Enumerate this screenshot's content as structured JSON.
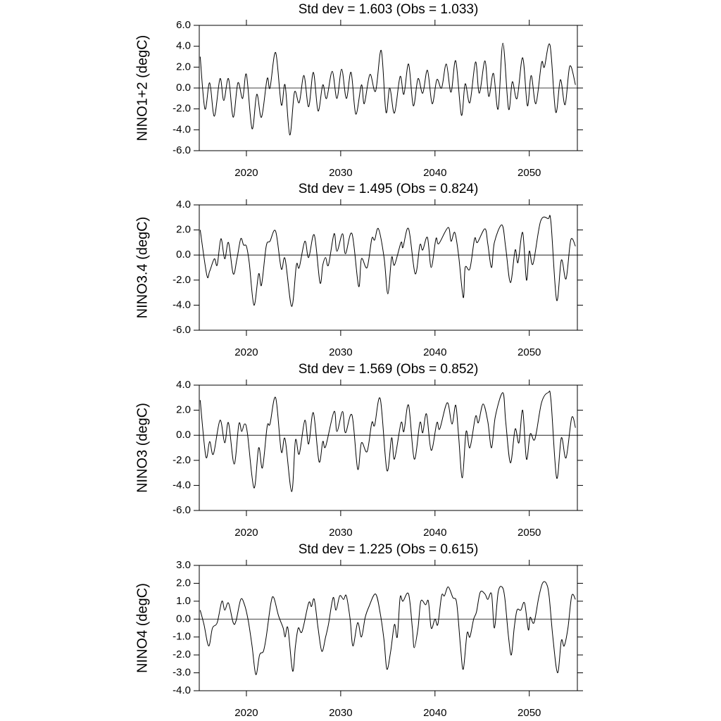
{
  "chart_data": [
    {
      "type": "line",
      "title": "Std dev = 1.603 (Obs = 1.033)",
      "y_label": "NINO1+2 (degC)",
      "color": "#000000",
      "zero_line": 0,
      "xlim": [
        2015,
        2055.1
      ],
      "xticks": [
        2020,
        2030,
        2040,
        2050
      ],
      "ylim": [
        -6,
        6
      ],
      "yticks": [
        {
          "value": 6,
          "label": "6.0"
        },
        {
          "value": 4,
          "label": "4.0"
        },
        {
          "value": 2,
          "label": "2.0"
        },
        {
          "value": 0,
          "label": "0.0"
        },
        {
          "value": -2,
          "label": "-2.0"
        },
        {
          "value": -4,
          "label": "-4.0"
        },
        {
          "value": -6,
          "label": "-6.0"
        }
      ],
      "x": [
        2015.1,
        2015.6,
        2016.1,
        2016.6,
        2017.2,
        2017.6,
        2018.1,
        2018.6,
        2019.1,
        2019.6,
        2020.0,
        2020.6,
        2021.1,
        2021.6,
        2022.2,
        2022.5,
        2023.1,
        2023.7,
        2024.1,
        2024.6,
        2025.1,
        2025.6,
        2026.1,
        2026.6,
        2027.1,
        2027.6,
        2028.1,
        2028.5,
        2029.1,
        2029.6,
        2030.1,
        2030.6,
        2031.1,
        2031.6,
        2032.2,
        2032.5,
        2033.1,
        2033.7,
        2034.3,
        2034.8,
        2035.2,
        2035.7,
        2036.3,
        2036.7,
        2037.2,
        2037.7,
        2038.2,
        2038.7,
        2039.2,
        2039.7,
        2040.2,
        2040.7,
        2041.2,
        2041.7,
        2042.2,
        2042.8,
        2043.2,
        2043.7,
        2044.3,
        2044.7,
        2045.3,
        2045.7,
        2046.2,
        2046.7,
        2047.2,
        2047.8,
        2048.2,
        2048.7,
        2049.3,
        2049.8,
        2050.2,
        2050.7,
        2051.3,
        2051.6,
        2052.2,
        2052.8,
        2053.3,
        2053.8,
        2054.3,
        2054.9
      ],
      "values": [
        3.0,
        -2.0,
        0.5,
        -2.7,
        0.9,
        -1.2,
        0.9,
        -2.8,
        0.5,
        -1.0,
        1.3,
        -3.9,
        -0.6,
        -2.8,
        0.9,
        0.0,
        3.4,
        -1.6,
        0.3,
        -4.5,
        -0.4,
        -1.4,
        1.2,
        -1.8,
        1.5,
        -2.2,
        0.3,
        -1.0,
        1.6,
        -1.0,
        1.8,
        -1.0,
        1.5,
        -2.5,
        0.3,
        -1.5,
        1.3,
        -0.3,
        3.6,
        -2.3,
        0.0,
        -2.4,
        1.1,
        -0.6,
        2.3,
        -1.7,
        0.9,
        -0.5,
        1.7,
        -1.5,
        0.8,
        0.0,
        2.3,
        -0.4,
        2.6,
        -2.6,
        0.4,
        -1.4,
        2.5,
        -0.5,
        2.6,
        -0.8,
        1.4,
        -2.0,
        4.3,
        -2.0,
        0.6,
        -1.0,
        2.9,
        -1.7,
        1.2,
        -1.5,
        2.4,
        2.0,
        4.1,
        -2.3,
        0.8,
        -1.6,
        2.1,
        0.3
      ]
    },
    {
      "type": "line",
      "title": "Std dev = 1.495 (Obs = 0.824)",
      "y_label": "NINO3.4 (degC)",
      "color": "#000000",
      "zero_line": 0,
      "xlim": [
        2015,
        2055.1
      ],
      "xticks": [
        2020,
        2030,
        2040,
        2050
      ],
      "ylim": [
        -6,
        4
      ],
      "yticks": [
        {
          "value": 4,
          "label": "4.0"
        },
        {
          "value": 2,
          "label": "2.0"
        },
        {
          "value": 0,
          "label": "0.0"
        },
        {
          "value": -2,
          "label": "-2.0"
        },
        {
          "value": -4,
          "label": "-4.0"
        },
        {
          "value": -6,
          "label": "-6.0"
        }
      ],
      "x": [
        2015.1,
        2015.8,
        2016.1,
        2016.6,
        2016.9,
        2017.3,
        2017.7,
        2018.1,
        2018.6,
        2019.0,
        2019.4,
        2019.7,
        2020.0,
        2020.3,
        2020.8,
        2021.3,
        2021.6,
        2022.1,
        2022.5,
        2023.1,
        2023.7,
        2024.1,
        2024.8,
        2025.3,
        2025.6,
        2026.2,
        2026.6,
        2027.2,
        2027.8,
        2028.1,
        2028.4,
        2028.7,
        2029.3,
        2029.6,
        2030.2,
        2030.5,
        2031.2,
        2031.9,
        2032.2,
        2032.8,
        2033.3,
        2033.6,
        2034.0,
        2034.6,
        2035.0,
        2035.4,
        2035.7,
        2036.4,
        2036.6,
        2037.2,
        2037.9,
        2038.4,
        2038.7,
        2039.2,
        2039.6,
        2040.1,
        2040.4,
        2041.4,
        2041.7,
        2042.1,
        2042.5,
        2043.0,
        2043.2,
        2043.7,
        2044.2,
        2044.5,
        2045.3,
        2045.6,
        2046.0,
        2046.3,
        2047.1,
        2047.5,
        2048.0,
        2048.5,
        2048.8,
        2049.3,
        2049.7,
        2050.0,
        2050.4,
        2051.2,
        2052.0,
        2052.3,
        2052.9,
        2053.4,
        2053.9,
        2054.4,
        2054.9
      ],
      "values": [
        2.0,
        -1.6,
        -1.3,
        -0.3,
        -0.8,
        1.3,
        -0.3,
        1.0,
        -1.5,
        -0.3,
        1.3,
        0.8,
        0.7,
        -0.6,
        -4.0,
        -1.5,
        -2.4,
        0.7,
        1.1,
        1.9,
        -1.1,
        -0.3,
        -4.1,
        -0.8,
        -1.0,
        1.1,
        -0.2,
        1.6,
        -2.2,
        -0.8,
        -0.2,
        -0.8,
        1.7,
        0.3,
        1.7,
        0.1,
        1.7,
        -2.5,
        -0.3,
        -1.0,
        1.3,
        1.2,
        2.1,
        -0.2,
        -3.1,
        -0.2,
        -0.8,
        1.0,
        0.6,
        2.1,
        -1.5,
        0.8,
        0.4,
        1.4,
        -1.0,
        1.3,
        0.9,
        2.2,
        1.1,
        1.8,
        0.0,
        -3.4,
        -1.0,
        -1.1,
        1.3,
        1.0,
        2.1,
        0.9,
        -1.0,
        1.0,
        2.4,
        0.6,
        -2.2,
        0.4,
        -0.6,
        1.8,
        -2.0,
        0.3,
        -0.7,
        2.7,
        2.9,
        2.6,
        -3.6,
        -0.4,
        -1.9,
        1.2,
        0.7
      ]
    },
    {
      "type": "line",
      "title": "Std dev = 1.569 (Obs = 0.852)",
      "y_label": "NINO3 (degC)",
      "color": "#000000",
      "zero_line": 0,
      "xlim": [
        2015,
        2055.1
      ],
      "xticks": [
        2020,
        2030,
        2040,
        2050
      ],
      "ylim": [
        -6,
        4
      ],
      "yticks": [
        {
          "value": 4,
          "label": "4.0"
        },
        {
          "value": 2,
          "label": "2.0"
        },
        {
          "value": 0,
          "label": "0.0"
        },
        {
          "value": -2,
          "label": "-2.0"
        },
        {
          "value": -4,
          "label": "-4.0"
        },
        {
          "value": -6,
          "label": "-6.0"
        }
      ],
      "x": [
        2015.1,
        2015.7,
        2016.1,
        2016.5,
        2017.2,
        2017.7,
        2018.1,
        2018.7,
        2019.2,
        2019.5,
        2019.8,
        2020.1,
        2020.8,
        2021.3,
        2021.7,
        2022.2,
        2022.5,
        2023.1,
        2023.7,
        2024.1,
        2024.8,
        2025.2,
        2025.6,
        2026.2,
        2026.6,
        2027.1,
        2027.7,
        2028.1,
        2028.4,
        2029.3,
        2029.6,
        2030.2,
        2030.5,
        2031.2,
        2031.8,
        2032.2,
        2032.8,
        2033.3,
        2033.6,
        2034.2,
        2034.9,
        2035.4,
        2035.7,
        2036.4,
        2036.7,
        2037.2,
        2037.8,
        2038.4,
        2038.7,
        2039.1,
        2039.6,
        2040.2,
        2040.5,
        2041.3,
        2041.8,
        2042.2,
        2042.5,
        2042.9,
        2043.3,
        2043.7,
        2044.3,
        2044.6,
        2045.1,
        2045.6,
        2046.0,
        2046.4,
        2047.2,
        2047.5,
        2048.0,
        2048.5,
        2048.9,
        2049.3,
        2049.7,
        2050.1,
        2050.6,
        2051.3,
        2052.0,
        2052.3,
        2052.9,
        2053.4,
        2053.9,
        2054.5,
        2054.9
      ],
      "values": [
        2.8,
        -1.7,
        -0.5,
        -1.5,
        1.2,
        -0.6,
        1.0,
        -2.3,
        0.9,
        0.3,
        0.9,
        0.2,
        -4.2,
        -1.0,
        -2.6,
        0.7,
        0.9,
        3.0,
        -1.3,
        -0.3,
        -4.5,
        -0.4,
        -1.5,
        1.2,
        -0.7,
        1.8,
        -2.1,
        -0.5,
        -0.9,
        1.9,
        0.3,
        1.9,
        0.2,
        1.6,
        -2.7,
        -0.6,
        -1.3,
        1.0,
        0.8,
        2.9,
        -2.8,
        -0.2,
        -1.9,
        1.0,
        0.3,
        2.4,
        -1.9,
        1.0,
        0.2,
        1.7,
        -1.2,
        1.0,
        0.5,
        2.6,
        0.9,
        2.4,
        0.0,
        -3.4,
        0.3,
        -1.0,
        1.5,
        1.0,
        2.5,
        1.1,
        -1.0,
        1.5,
        3.4,
        1.1,
        -2.2,
        0.5,
        -0.6,
        2.0,
        -1.9,
        0.1,
        -0.3,
        2.6,
        3.4,
        2.8,
        -3.4,
        -0.2,
        -1.8,
        1.4,
        0.6
      ]
    },
    {
      "type": "line",
      "title": "Std dev = 1.225 (Obs = 0.615)",
      "y_label": "NINO4 (degC)",
      "color": "#000000",
      "zero_line": 0,
      "xlim": [
        2015,
        2055.1
      ],
      "xticks": [
        2020,
        2030,
        2040,
        2050
      ],
      "ylim": [
        -4,
        3
      ],
      "yticks": [
        {
          "value": 3,
          "label": "3.0"
        },
        {
          "value": 2,
          "label": "2.0"
        },
        {
          "value": 1,
          "label": "1.0"
        },
        {
          "value": 0,
          "label": "0.0"
        },
        {
          "value": -1,
          "label": "-1.0"
        },
        {
          "value": -2,
          "label": "-2.0"
        },
        {
          "value": -3,
          "label": "-3.0"
        },
        {
          "value": -4,
          "label": "-4.0"
        }
      ],
      "x": [
        2015.1,
        2015.5,
        2016.0,
        2016.4,
        2016.9,
        2017.4,
        2017.7,
        2018.1,
        2018.6,
        2018.9,
        2019.4,
        2019.8,
        2020.2,
        2020.6,
        2021.0,
        2021.4,
        2021.8,
        2022.1,
        2022.6,
        2022.9,
        2023.4,
        2023.9,
        2024.1,
        2024.4,
        2024.9,
        2025.2,
        2025.5,
        2025.9,
        2026.6,
        2026.9,
        2027.2,
        2027.6,
        2028.0,
        2028.4,
        2028.7,
        2029.2,
        2029.5,
        2029.9,
        2030.3,
        2030.6,
        2031.0,
        2031.3,
        2031.8,
        2032.2,
        2032.6,
        2033.0,
        2033.7,
        2034.2,
        2034.6,
        2034.9,
        2035.3,
        2035.7,
        2036.0,
        2036.3,
        2036.6,
        2037.2,
        2037.6,
        2037.8,
        2038.2,
        2038.5,
        2039.0,
        2039.3,
        2039.6,
        2040.0,
        2040.3,
        2040.7,
        2041.0,
        2041.4,
        2041.9,
        2042.3,
        2042.7,
        2043.0,
        2043.4,
        2043.7,
        2044.1,
        2044.4,
        2044.8,
        2045.3,
        2045.6,
        2046.0,
        2046.3,
        2046.7,
        2047.1,
        2047.4,
        2047.8,
        2048.1,
        2048.4,
        2048.7,
        2049.1,
        2049.5,
        2049.9,
        2050.1,
        2050.5,
        2051.0,
        2051.4,
        2051.8,
        2052.1,
        2052.5,
        2053.0,
        2053.4,
        2053.7,
        2054.1,
        2054.5,
        2054.9
      ],
      "values": [
        0.5,
        -0.3,
        -1.5,
        -0.5,
        -0.2,
        1.0,
        0.5,
        0.9,
        -0.2,
        -0.1,
        1.1,
        0.8,
        -0.1,
        -1.5,
        -3.1,
        -2.0,
        -1.8,
        -1.0,
        0.9,
        1.2,
        0.2,
        -0.5,
        -1.0,
        -0.5,
        -2.9,
        -1.5,
        -0.5,
        -0.7,
        0.9,
        0.7,
        1.1,
        -0.5,
        -1.8,
        -1.0,
        -0.3,
        1.2,
        0.5,
        1.3,
        1.1,
        1.3,
        0.0,
        -1.5,
        -0.2,
        -1.0,
        0.1,
        0.7,
        1.4,
        0.3,
        -1.2,
        -2.8,
        -1.8,
        -0.3,
        -1.0,
        1.2,
        1.0,
        1.4,
        -0.5,
        -1.6,
        -0.5,
        1.0,
        0.8,
        1.0,
        -0.5,
        0.0,
        -0.3,
        1.3,
        1.3,
        1.8,
        1.2,
        0.9,
        -1.5,
        -2.8,
        -0.8,
        -1.0,
        0.0,
        0.4,
        1.5,
        1.4,
        1.1,
        1.4,
        -0.5,
        1.5,
        1.8,
        1.2,
        -1.0,
        -2.0,
        -0.5,
        0.5,
        0.5,
        0.9,
        -0.6,
        0.1,
        -0.2,
        1.2,
        2.0,
        2.0,
        1.3,
        -1.0,
        -3.0,
        -1.2,
        -1.5,
        -0.5,
        1.3,
        1.1
      ]
    }
  ]
}
